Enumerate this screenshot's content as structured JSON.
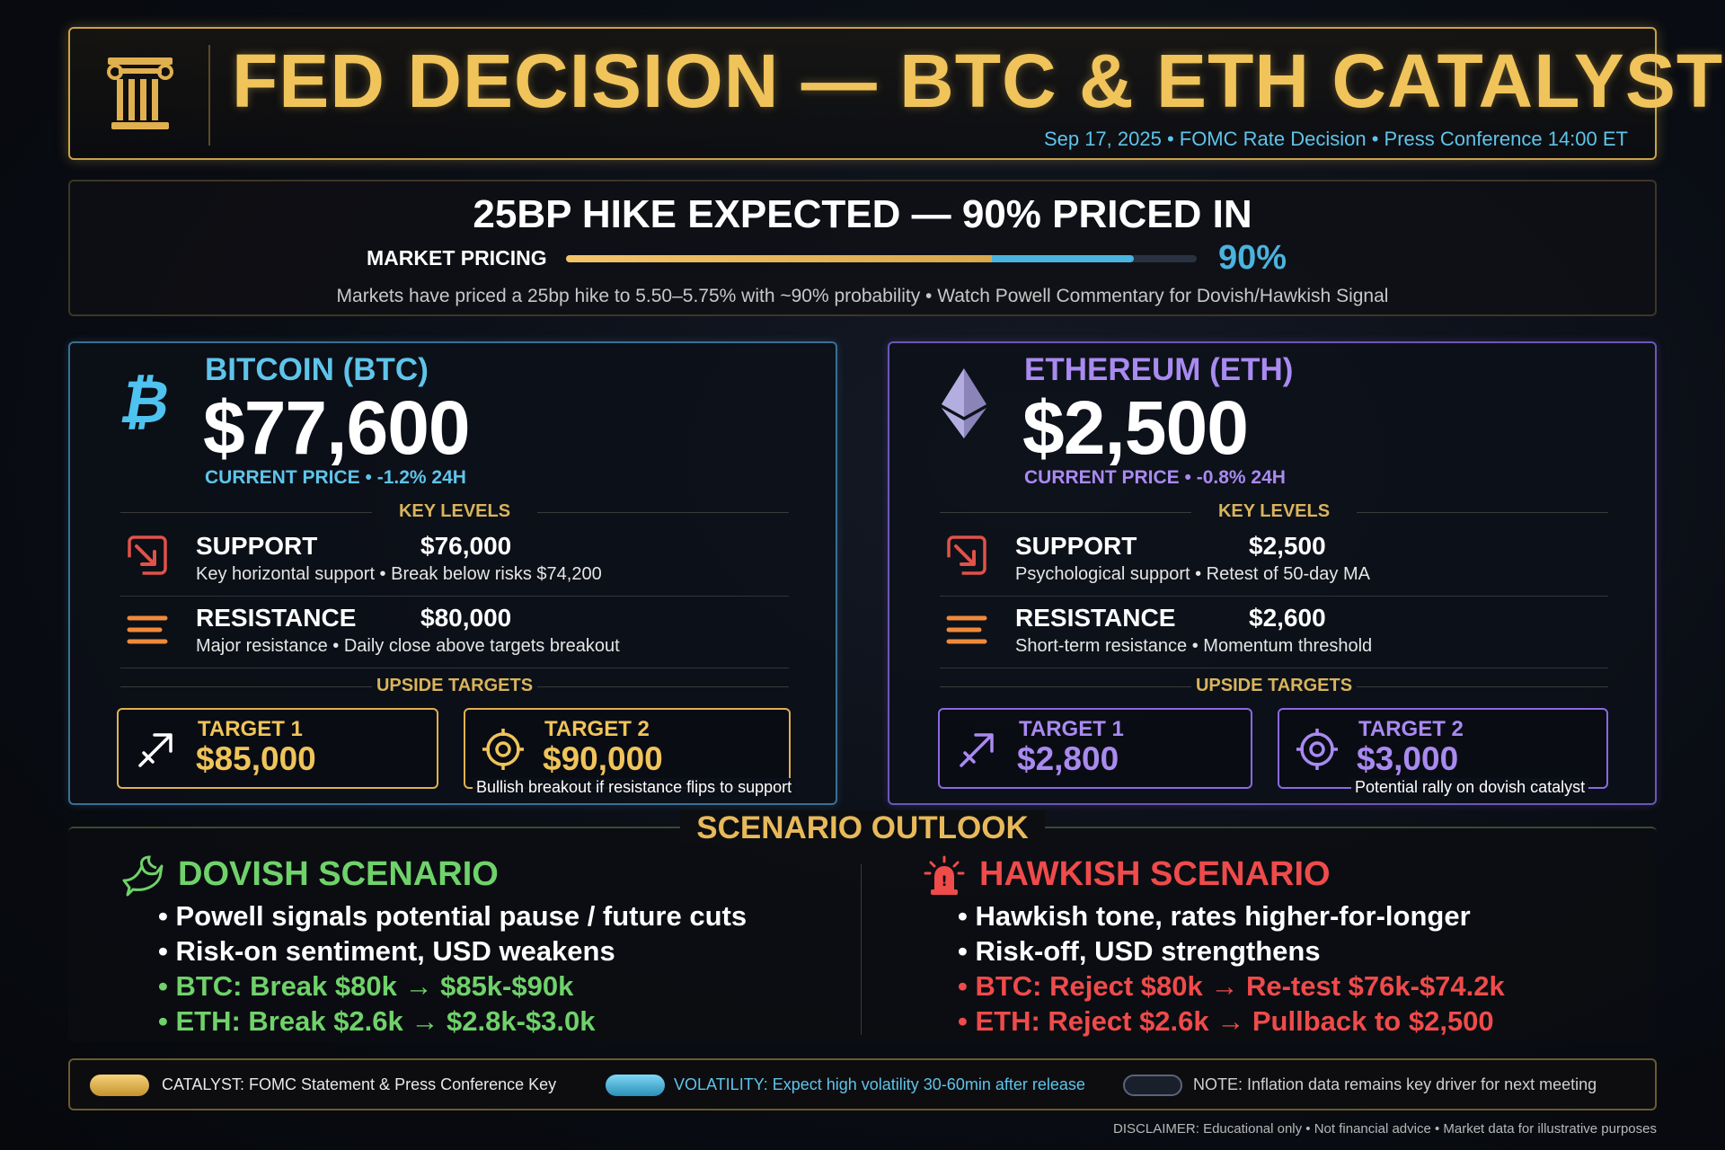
{
  "header": {
    "title": "FED DECISION — BTC & ETH CATALYST",
    "subtitle": "Sep 17, 2025 • FOMC Rate Decision • Press Conference 14:00 ET",
    "icon": "pillar-icon",
    "accent_color": "#f0c45a"
  },
  "pricing": {
    "headline": "25BP HIKE EXPECTED — 90% PRICED IN",
    "label": "MARKET PRICING",
    "value_text": "90%",
    "value": 0.9,
    "note": "Markets have priced a 25bp hike to 5.50–5.75% with ~90% probability • Watch Powell Commentary for Dovish/Hawkish Signal"
  },
  "btc": {
    "name": "BITCOIN (BTC)",
    "price": "$77,600",
    "sub": "CURRENT PRICE • -1.2% 24H",
    "color": "#5fc4ea",
    "key_levels_label": "KEY LEVELS",
    "support": {
      "name": "SUPPORT",
      "value": "$76,000",
      "desc": "Key horizontal support  •  Break below risks $74,200"
    },
    "resistance": {
      "name": "RESISTANCE",
      "value": "$80,000",
      "desc": "Major resistance  •  Daily close above targets breakout"
    },
    "targets_label": "UPSIDE TARGETS",
    "target1": {
      "name": "TARGET 1",
      "value": "$85,000"
    },
    "target2": {
      "name": "TARGET 2",
      "value": "$90,000",
      "note": "Bullish breakout if resistance flips to support"
    }
  },
  "eth": {
    "name": "ETHEREUM (ETH)",
    "price": "$2,500",
    "sub": "CURRENT PRICE • -0.8% 24H",
    "color": "#a98af0",
    "key_levels_label": "KEY LEVELS",
    "support": {
      "name": "SUPPORT",
      "value": "$2,500",
      "desc": "Psychological support  •  Retest of 50-day MA"
    },
    "resistance": {
      "name": "RESISTANCE",
      "value": "$2,600",
      "desc": "Short-term resistance  •  Momentum threshold"
    },
    "targets_label": "UPSIDE TARGETS",
    "target1": {
      "name": "TARGET 1",
      "value": "$2,800"
    },
    "target2": {
      "name": "TARGET 2",
      "value": "$3,000",
      "note": "Potential rally on dovish catalyst"
    }
  },
  "scenario": {
    "title": "SCENARIO OUTLOOK",
    "dovish": {
      "title": "DOVISH SCENARIO",
      "color": "#6fd26a",
      "items": [
        "Powell signals potential pause / future cuts",
        "Risk-on sentiment, USD weakens",
        "BTC: Break $80k → $85k-$90k",
        "ETH: Break $2.6k → $2.8k-$3.0k"
      ]
    },
    "hawkish": {
      "title": "HAWKISH SCENARIO",
      "color": "#ef4b4b",
      "items": [
        "Hawkish tone, rates higher-for-longer",
        "Risk-off, USD strengthens",
        "BTC: Reject $80k → Re-test $76k-$74.2k",
        "ETH: Reject $2.6k → Pullback to $2,500"
      ]
    }
  },
  "legend": {
    "catalyst": "CATALYST: FOMC Statement & Press Conference Key",
    "volatility": "VOLATILITY: Expect high volatility 30-60min after release",
    "note": "NOTE: Inflation data remains key driver for next meeting"
  },
  "disclaimer": "DISCLAIMER: Educational only • Not financial advice • Market data for illustrative purposes"
}
